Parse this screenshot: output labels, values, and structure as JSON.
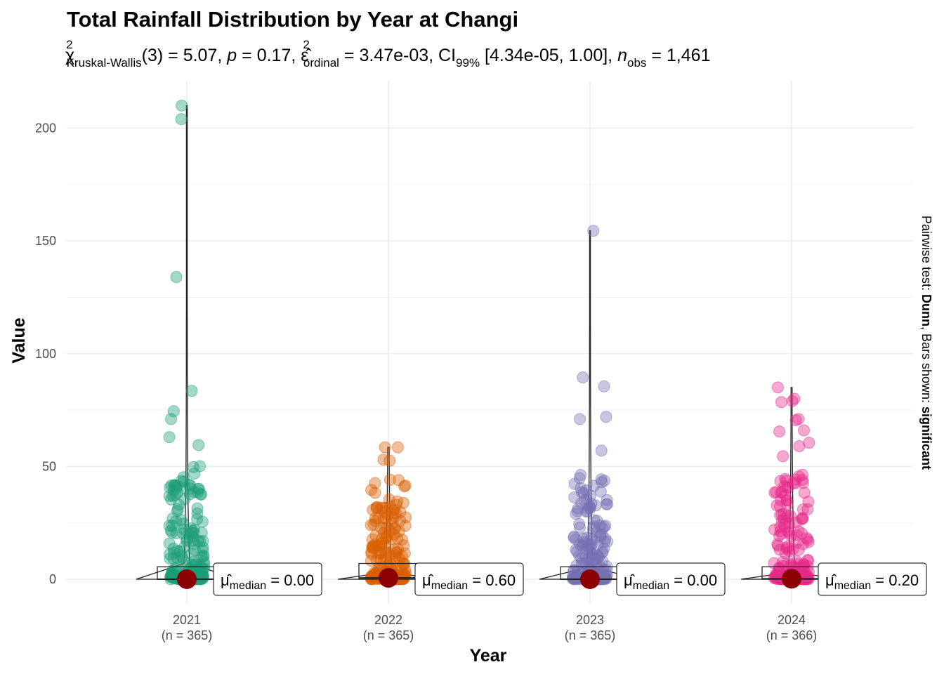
{
  "chart_data": {
    "type": "scatter",
    "title": "Total Rainfall Distribution by Year at Changi",
    "subtitle": {
      "chi_label": "Kruskal-Wallis",
      "df": "(3)",
      "statistic": "5.07",
      "p_value": "0.17",
      "effsize_label": "ordinal",
      "effsize": "3.47e-03",
      "ci_label": "99%",
      "ci": "[4.34e-05, 1.00]",
      "n_label": "obs",
      "n": "1,461"
    },
    "caption": {
      "prefix": "Pairwise test: ",
      "test": "Dunn",
      "middle": ", Bars shown: ",
      "bars": "significant"
    },
    "xlabel": "Year",
    "ylabel": "Value",
    "ylim": [
      -11,
      216
    ],
    "yticks": [
      0,
      50,
      100,
      150,
      200
    ],
    "median_symbol": "μ",
    "median_label": "median",
    "categories": [
      {
        "name": "2021",
        "n_label": "(n = 365)",
        "color": "#1B9E77",
        "median": 0.0,
        "median_text": "= 0.00",
        "outliers": [
          210,
          204,
          134,
          83.5,
          74.5,
          71,
          63,
          59.5
        ]
      },
      {
        "name": "2022",
        "n_label": "(n = 365)",
        "color": "#D95F02",
        "median": 0.6,
        "median_text": "= 0.60",
        "outliers": [
          58.5,
          58.5,
          53,
          52.5
        ]
      },
      {
        "name": "2023",
        "n_label": "(n = 365)",
        "color": "#7570B3",
        "median": 0.0,
        "median_text": "= 0.00",
        "outliers": [
          154.5,
          89.5,
          85.5,
          72,
          71,
          57
        ]
      },
      {
        "name": "2024",
        "n_label": "(n = 366)",
        "color": "#E7298A",
        "median": 0.2,
        "median_text": "= 0.20",
        "outliers": [
          85,
          80,
          79,
          78.5,
          71,
          70.5,
          66,
          65.5,
          60.5,
          59,
          54.5
        ]
      }
    ]
  }
}
